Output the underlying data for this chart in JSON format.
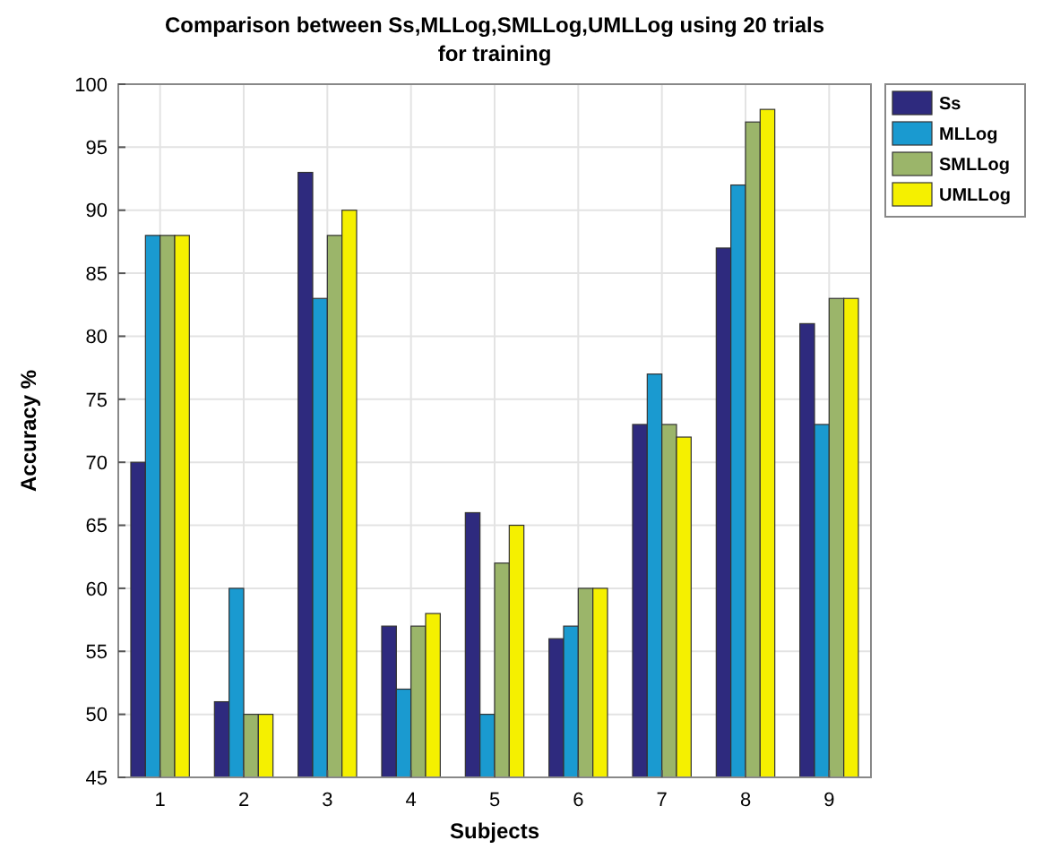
{
  "chart_data": {
    "type": "bar",
    "title": "Comparison between Ss,MLLog,SMLLog,UMLLog using 20 trials for training",
    "xlabel": "Subjects",
    "ylabel": "Accuracy %",
    "categories": [
      "1",
      "2",
      "3",
      "4",
      "5",
      "6",
      "7",
      "8",
      "9"
    ],
    "series": [
      {
        "name": "Ss",
        "color": "#2e2a7e",
        "values": [
          70,
          51,
          93,
          57,
          66,
          56,
          73,
          87,
          81
        ]
      },
      {
        "name": "MLLog",
        "color": "#1a9ad0",
        "values": [
          88,
          60,
          83,
          52,
          50,
          57,
          77,
          92,
          73
        ]
      },
      {
        "name": "SMLLog",
        "color": "#9bb56a",
        "values": [
          88,
          50,
          88,
          57,
          62,
          60,
          73,
          97,
          83
        ]
      },
      {
        "name": "UMLLog",
        "color": "#f5f000",
        "values": [
          88,
          50,
          90,
          58,
          65,
          60,
          72,
          98,
          83
        ]
      }
    ],
    "ylim": [
      45,
      100
    ],
    "yticks": [
      45,
      50,
      55,
      60,
      65,
      70,
      75,
      80,
      85,
      90,
      95,
      100
    ],
    "grid": true,
    "legend": "right"
  }
}
